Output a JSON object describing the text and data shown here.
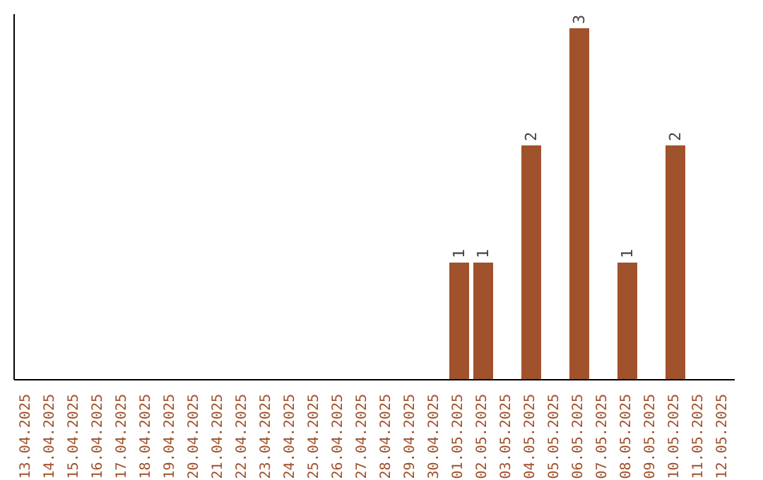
{
  "chart_data": {
    "type": "bar",
    "categories": [
      "13.04.2025",
      "14.04.2025",
      "15.04.2025",
      "16.04.2025",
      "17.04.2025",
      "18.04.2025",
      "19.04.2025",
      "20.04.2025",
      "21.04.2025",
      "22.04.2025",
      "23.04.2025",
      "24.04.2025",
      "25.04.2025",
      "26.04.2025",
      "27.04.2025",
      "28.04.2025",
      "29.04.2025",
      "30.04.2025",
      "01.05.2025",
      "02.05.2025",
      "03.05.2025",
      "04.05.2025",
      "05.05.2025",
      "06.05.2025",
      "07.05.2025",
      "08.05.2025",
      "09.05.2025",
      "10.05.2025",
      "11.05.2025",
      "12.05.2025"
    ],
    "values": [
      null,
      null,
      null,
      null,
      null,
      null,
      null,
      null,
      null,
      null,
      null,
      null,
      null,
      null,
      null,
      null,
      null,
      null,
      1,
      1,
      null,
      2,
      null,
      3,
      null,
      1,
      null,
      2,
      null,
      null
    ],
    "color": "#a0522d",
    "data_labels": true,
    "tick_labels": "x",
    "grid": false
  }
}
